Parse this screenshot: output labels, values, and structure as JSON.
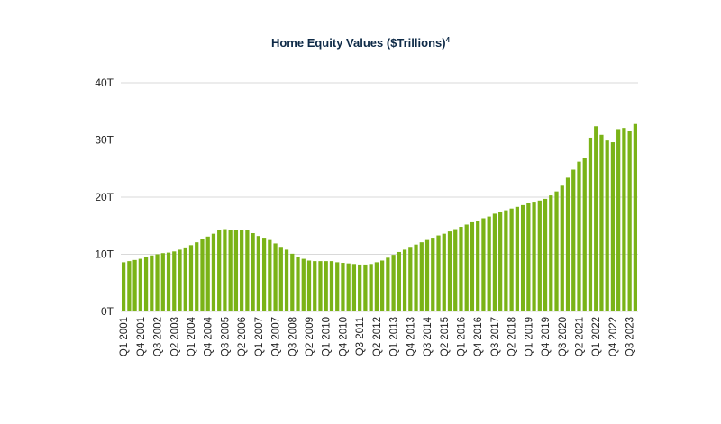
{
  "chart_data": {
    "type": "bar",
    "title": "Home Equity Values ($Trillions)",
    "title_superscript": "4",
    "xlabel": "",
    "ylabel": "",
    "ylim": [
      0,
      40
    ],
    "y_ticks": [
      0,
      10,
      20,
      30,
      40
    ],
    "y_tick_labels": [
      "0T",
      "10T",
      "20T",
      "30T",
      "40T"
    ],
    "bar_color": "#7ab317",
    "grid": true,
    "categories": [
      "Q1 2001",
      "Q2 2001",
      "Q3 2001",
      "Q4 2001",
      "Q1 2002",
      "Q2 2002",
      "Q3 2002",
      "Q4 2002",
      "Q1 2003",
      "Q2 2003",
      "Q3 2003",
      "Q4 2003",
      "Q1 2004",
      "Q2 2004",
      "Q3 2004",
      "Q4 2004",
      "Q1 2005",
      "Q2 2005",
      "Q3 2005",
      "Q4 2005",
      "Q1 2006",
      "Q2 2006",
      "Q3 2006",
      "Q4 2006",
      "Q1 2007",
      "Q2 2007",
      "Q3 2007",
      "Q4 2007",
      "Q1 2008",
      "Q2 2008",
      "Q3 2008",
      "Q4 2008",
      "Q1 2009",
      "Q2 2009",
      "Q3 2009",
      "Q4 2009",
      "Q1 2010",
      "Q2 2010",
      "Q3 2010",
      "Q4 2010",
      "Q1 2011",
      "Q2 2011",
      "Q3 2011",
      "Q4 2011",
      "Q1 2012",
      "Q2 2012",
      "Q3 2012",
      "Q4 2012",
      "Q1 2013",
      "Q2 2013",
      "Q3 2013",
      "Q4 2013",
      "Q1 2014",
      "Q2 2014",
      "Q3 2014",
      "Q4 2014",
      "Q1 2015",
      "Q2 2015",
      "Q3 2015",
      "Q4 2015",
      "Q1 2016",
      "Q2 2016",
      "Q3 2016",
      "Q4 2016",
      "Q1 2017",
      "Q2 2017",
      "Q3 2017",
      "Q4 2017",
      "Q1 2018",
      "Q2 2018",
      "Q3 2018",
      "Q4 2018",
      "Q1 2019",
      "Q2 2019",
      "Q3 2019",
      "Q4 2019",
      "Q1 2020",
      "Q2 2020",
      "Q3 2020",
      "Q4 2020",
      "Q1 2021",
      "Q2 2021",
      "Q3 2021",
      "Q4 2021",
      "Q1 2022",
      "Q2 2022",
      "Q3 2022",
      "Q4 2022",
      "Q1 2023",
      "Q2 2023",
      "Q3 2023",
      "Q4 2023"
    ],
    "values": [
      8.6,
      8.8,
      9.0,
      9.2,
      9.5,
      9.8,
      10.0,
      10.2,
      10.3,
      10.5,
      10.8,
      11.2,
      11.6,
      12.1,
      12.6,
      13.1,
      13.6,
      14.2,
      14.4,
      14.2,
      14.2,
      14.3,
      14.2,
      13.7,
      13.2,
      12.9,
      12.5,
      11.9,
      11.3,
      10.8,
      10.1,
      9.6,
      9.2,
      8.9,
      8.8,
      8.8,
      8.8,
      8.8,
      8.6,
      8.5,
      8.4,
      8.3,
      8.2,
      8.2,
      8.3,
      8.6,
      8.9,
      9.4,
      9.9,
      10.4,
      10.8,
      11.3,
      11.7,
      12.1,
      12.5,
      12.9,
      13.3,
      13.6,
      14.0,
      14.4,
      14.8,
      15.2,
      15.6,
      15.9,
      16.3,
      16.6,
      17.1,
      17.4,
      17.7,
      18.0,
      18.3,
      18.6,
      18.9,
      19.2,
      19.4,
      19.7,
      20.3,
      21.0,
      22.0,
      23.4,
      24.8,
      26.2,
      26.8,
      30.4,
      32.4,
      30.9,
      29.9,
      29.6,
      31.9,
      32.1,
      31.6,
      32.8
    ],
    "x_tick_labels": [
      "Q1 2001",
      "Q4 2001",
      "Q3 2002",
      "Q2 2003",
      "Q1 2004",
      "Q4 2004",
      "Q3 2005",
      "Q2 2006",
      "Q1 2007",
      "Q4 2007",
      "Q3 2008",
      "Q2 2009",
      "Q1 2010",
      "Q4 2010",
      "Q3 2011",
      "Q2 2012",
      "Q1 2013",
      "Q4 2013",
      "Q3 2014",
      "Q2 2015",
      "Q1 2016",
      "Q4 2016",
      "Q3 2017",
      "Q2 2018",
      "Q1 2019",
      "Q4 2019",
      "Q3 2020",
      "Q2 2021",
      "Q1 2022",
      "Q4 2022",
      "Q3 2023"
    ]
  }
}
